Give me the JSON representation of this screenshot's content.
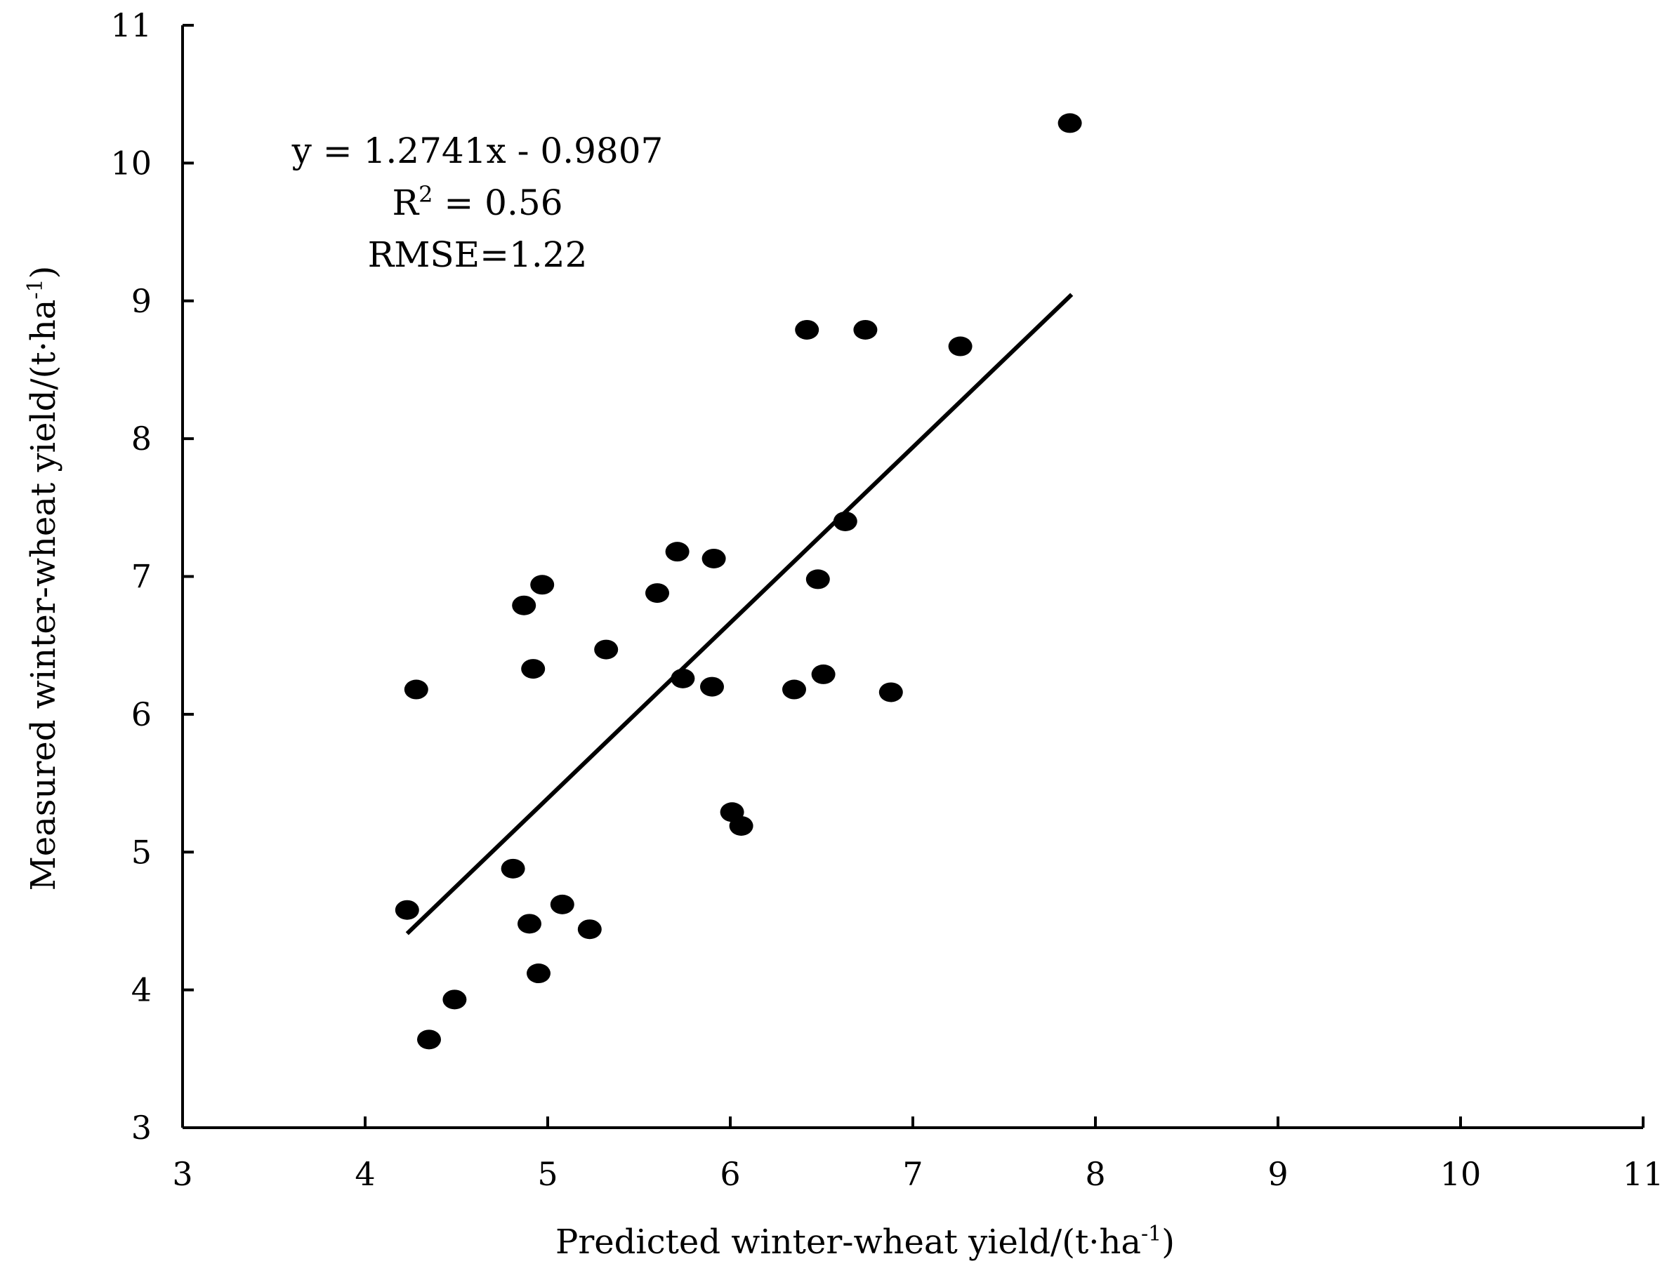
{
  "chart_data": {
    "type": "scatter",
    "xlabel": "Predicted winter-wheat yield/(t·ha",
    "xlabel_sup": "-1",
    "xlabel_close": ")",
    "ylabel": "Measured winter-wheat yield/(t·ha",
    "ylabel_sup": "-1",
    "ylabel_close": ")",
    "xlim": [
      3,
      11
    ],
    "ylim": [
      3,
      11
    ],
    "xticks": [
      "3",
      "4",
      "5",
      "6",
      "7",
      "8",
      "9",
      "10",
      "11"
    ],
    "yticks": [
      "3",
      "4",
      "5",
      "6",
      "7",
      "8",
      "9",
      "10",
      "11"
    ],
    "grid": false,
    "legend": "none",
    "marker_color": "#000000",
    "points": [
      {
        "x": 4.23,
        "y": 4.58
      },
      {
        "x": 4.28,
        "y": 6.18
      },
      {
        "x": 4.35,
        "y": 3.64
      },
      {
        "x": 4.49,
        "y": 3.93
      },
      {
        "x": 4.81,
        "y": 4.88
      },
      {
        "x": 4.87,
        "y": 6.79
      },
      {
        "x": 4.9,
        "y": 4.48
      },
      {
        "x": 4.92,
        "y": 6.33
      },
      {
        "x": 4.95,
        "y": 4.12
      },
      {
        "x": 4.97,
        "y": 6.94
      },
      {
        "x": 5.08,
        "y": 4.62
      },
      {
        "x": 5.23,
        "y": 4.44
      },
      {
        "x": 5.32,
        "y": 6.47
      },
      {
        "x": 5.6,
        "y": 6.88
      },
      {
        "x": 5.71,
        "y": 7.18
      },
      {
        "x": 5.74,
        "y": 6.26
      },
      {
        "x": 5.9,
        "y": 6.2
      },
      {
        "x": 5.91,
        "y": 7.13
      },
      {
        "x": 6.01,
        "y": 5.29
      },
      {
        "x": 6.06,
        "y": 5.19
      },
      {
        "x": 6.35,
        "y": 6.18
      },
      {
        "x": 6.42,
        "y": 8.79
      },
      {
        "x": 6.48,
        "y": 6.98
      },
      {
        "x": 6.51,
        "y": 6.29
      },
      {
        "x": 6.63,
        "y": 7.4
      },
      {
        "x": 6.74,
        "y": 8.79
      },
      {
        "x": 6.88,
        "y": 6.16
      },
      {
        "x": 7.26,
        "y": 8.67
      },
      {
        "x": 7.86,
        "y": 10.29
      }
    ],
    "trendline": {
      "slope": 1.2741,
      "intercept": -0.9807,
      "x_range": [
        4.23,
        7.87
      ]
    },
    "annotations": {
      "equation": "y = 1.2741x - 0.9807",
      "r2_prefix": "R",
      "r2_sup": "2",
      "r2_suffix": " = 0.56",
      "rmse": "RMSE=1.22"
    }
  }
}
